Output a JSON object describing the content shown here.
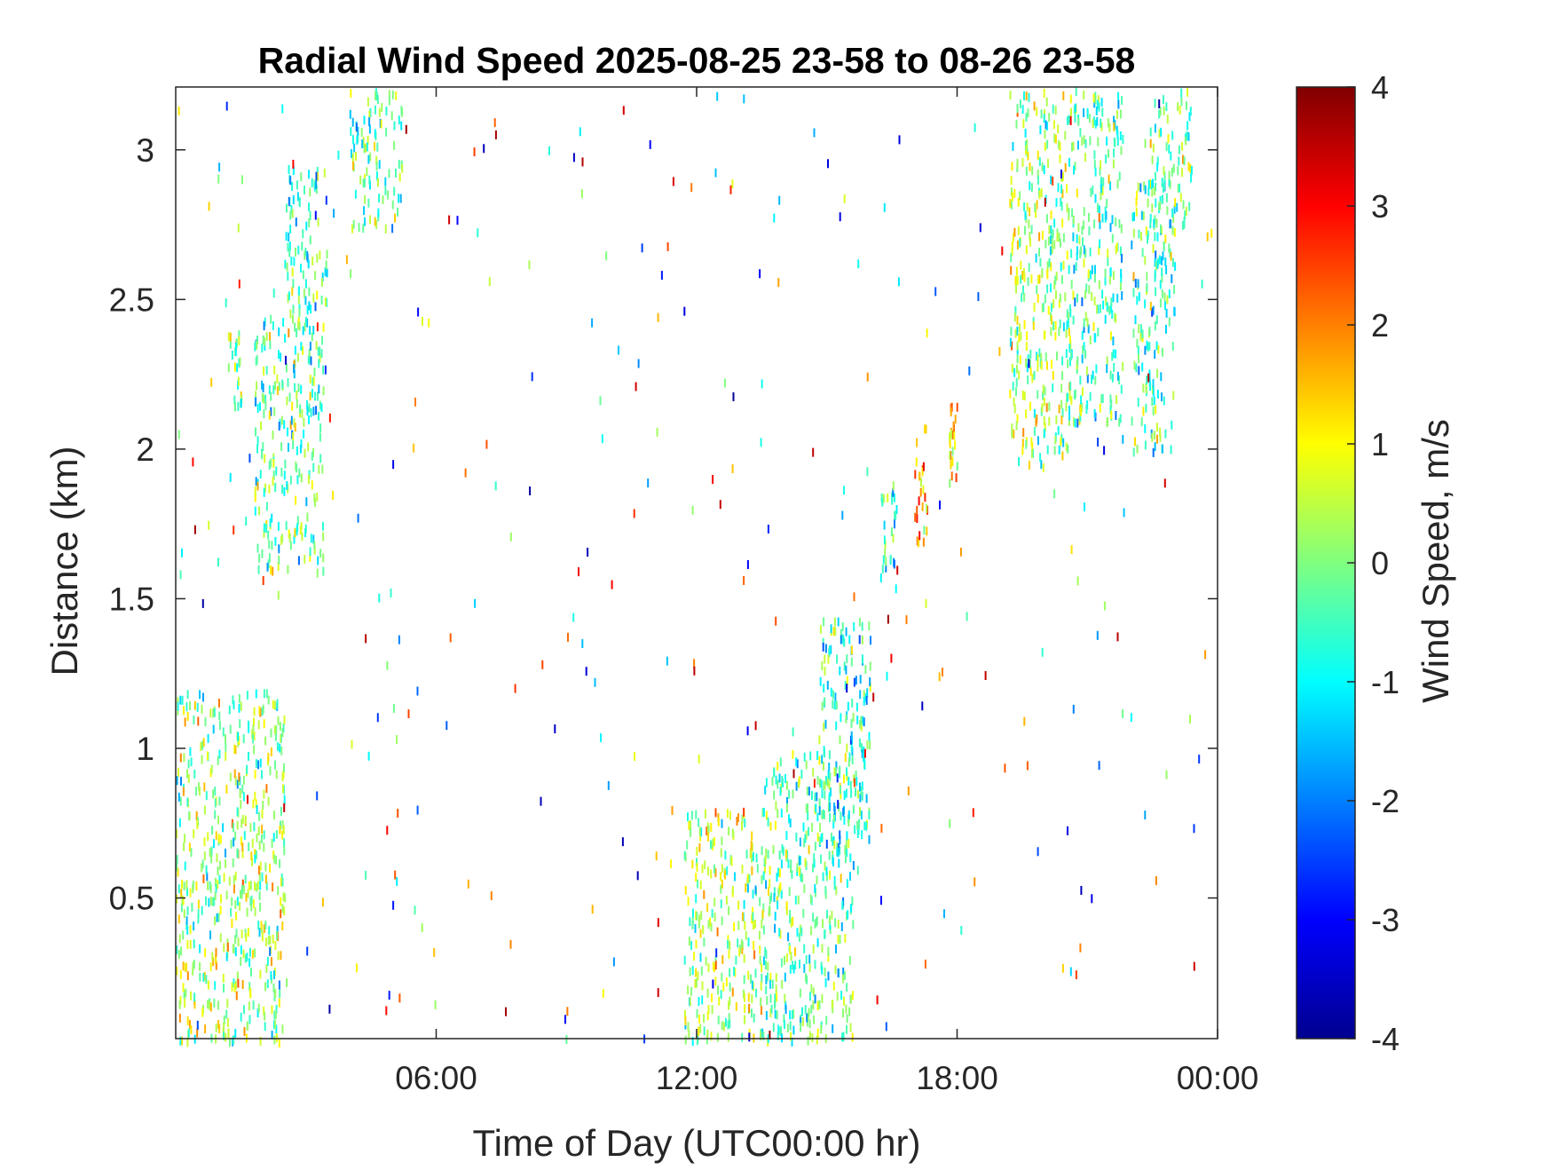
{
  "chart_data": {
    "type": "heatmap",
    "title": "Radial Wind Speed 2025-08-25 23-58 to 08-26 23-58",
    "xlabel": "Time of Day (UTC00:00 hr)",
    "ylabel": "Distance (km)",
    "xlim_hours": [
      0,
      24
    ],
    "ylim_km": [
      0.03,
      3.21
    ],
    "x_ticks": [
      {
        "hour": 6,
        "label": "06:00"
      },
      {
        "hour": 12,
        "label": "12:00"
      },
      {
        "hour": 18,
        "label": "18:00"
      },
      {
        "hour": 24,
        "label": "00:00"
      }
    ],
    "y_ticks": [
      {
        "value": 0.5,
        "label": "0.5"
      },
      {
        "value": 1,
        "label": "1"
      },
      {
        "value": 1.5,
        "label": "1.5"
      },
      {
        "value": 2,
        "label": "2"
      },
      {
        "value": 2.5,
        "label": "2.5"
      },
      {
        "value": 3,
        "label": "3"
      }
    ],
    "colorbar": {
      "label": "Wind Speed, m/s",
      "range": [
        -4,
        4
      ],
      "colormap": "jet",
      "ticks": [
        {
          "value": 4,
          "label": "4"
        },
        {
          "value": 3,
          "label": "3"
        },
        {
          "value": 2,
          "label": "2"
        },
        {
          "value": 1,
          "label": "1"
        },
        {
          "value": 0,
          "label": "0"
        },
        {
          "value": -1,
          "label": "-1"
        },
        {
          "value": -2,
          "label": "-2"
        },
        {
          "value": -3,
          "label": "-3"
        },
        {
          "value": -4,
          "label": "-4"
        }
      ]
    },
    "grid": false,
    "data_regions": [
      {
        "hours": [
          1.2,
          1.5
        ],
        "km": [
          2.15,
          2.4
        ],
        "mean_mps": 0.0
      },
      {
        "hours": [
          1.8,
          3.4
        ],
        "km": [
          1.6,
          2.45
        ],
        "mean_mps": -0.3
      },
      {
        "hours": [
          2.5,
          3.5
        ],
        "km": [
          2.4,
          2.95
        ],
        "mean_mps": -0.5
      },
      {
        "hours": [
          4.0,
          5.2
        ],
        "km": [
          2.75,
          3.21
        ],
        "mean_mps": -0.2
      },
      {
        "hours": [
          0.0,
          2.5
        ],
        "km": [
          0.03,
          1.2
        ],
        "mean_mps": 0.2
      },
      {
        "hours": [
          11.7,
          13.5
        ],
        "km": [
          0.03,
          0.8
        ],
        "mean_mps": 0.3
      },
      {
        "hours": [
          13.5,
          15.6
        ],
        "km": [
          0.03,
          1.0
        ],
        "mean_mps": -0.3
      },
      {
        "hours": [
          14.8,
          16.0
        ],
        "km": [
          0.6,
          1.45
        ],
        "mean_mps": -0.7
      },
      {
        "hours": [
          16.2,
          16.6
        ],
        "km": [
          1.5,
          1.9
        ],
        "mean_mps": -0.5
      },
      {
        "hours": [
          17.0,
          17.3
        ],
        "km": [
          1.7,
          2.1
        ],
        "mean_mps": 1.8
      },
      {
        "hours": [
          17.8,
          18.0
        ],
        "km": [
          1.9,
          2.2
        ],
        "mean_mps": 1.5
      },
      {
        "hours": [
          19.2,
          20.6
        ],
        "km": [
          1.95,
          3.21
        ],
        "mean_mps": 0.2
      },
      {
        "hours": [
          20.5,
          21.8
        ],
        "km": [
          2.1,
          3.21
        ],
        "mean_mps": -0.5
      },
      {
        "hours": [
          22.0,
          23.0
        ],
        "km": [
          2.0,
          2.9
        ],
        "mean_mps": -0.4
      },
      {
        "hours": [
          22.4,
          23.4
        ],
        "km": [
          2.75,
          3.21
        ],
        "mean_mps": -0.1
      }
    ]
  }
}
